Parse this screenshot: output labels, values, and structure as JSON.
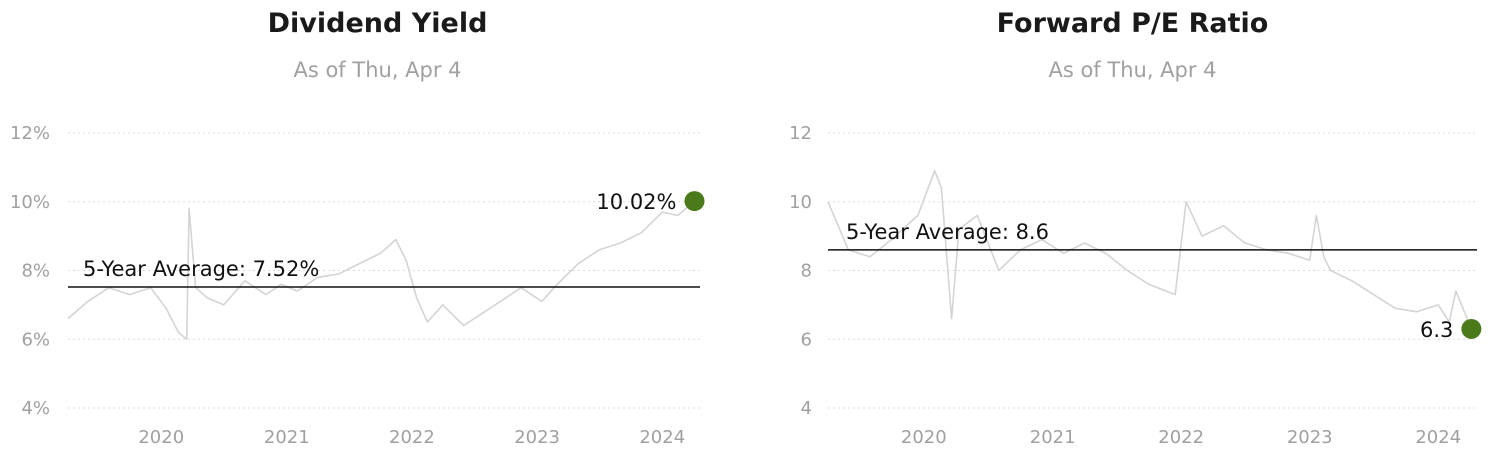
{
  "chart_data": [
    {
      "type": "line",
      "title": "Dividend Yield",
      "subtitle": "As of Thu, Apr 4",
      "x_ticks": [
        "2020",
        "2021",
        "2022",
        "2023",
        "2024"
      ],
      "y_ticks": [
        "4%",
        "6%",
        "8%",
        "10%",
        "12%"
      ],
      "ylim": [
        4,
        12
      ],
      "xlim": [
        "2019-04-04",
        "2024-04-20"
      ],
      "grid": "horizontal dotted",
      "average": {
        "label": "5-Year Average: 7.52%",
        "value": 7.52
      },
      "end_point": {
        "label": "10.02%",
        "x": "2024-04-04",
        "value": 10.02,
        "color": "#4a7a1a"
      },
      "series": [
        {
          "color": "#d4d4d4",
          "x": [
            "2019-04-04",
            "2019-06-01",
            "2019-08-01",
            "2019-10-01",
            "2019-12-01",
            "2020-01-15",
            "2020-02-20",
            "2020-03-15",
            "2020-03-22",
            "2020-04-10",
            "2020-05-15",
            "2020-07-01",
            "2020-09-01",
            "2020-11-01",
            "2020-12-15",
            "2021-02-01",
            "2021-04-01",
            "2021-06-01",
            "2021-08-01",
            "2021-10-01",
            "2021-11-15",
            "2021-12-15",
            "2022-01-15",
            "2022-02-15",
            "2022-04-01",
            "2022-06-01",
            "2022-08-01",
            "2022-10-01",
            "2022-11-15",
            "2023-01-15",
            "2023-03-01",
            "2023-05-01",
            "2023-07-01",
            "2023-09-01",
            "2023-11-01",
            "2024-01-01",
            "2024-02-15",
            "2024-04-04"
          ],
          "values": [
            6.6,
            7.1,
            7.5,
            7.3,
            7.5,
            6.9,
            6.2,
            6.0,
            9.8,
            7.5,
            7.2,
            7.0,
            7.7,
            7.3,
            7.6,
            7.4,
            7.8,
            7.9,
            8.2,
            8.5,
            8.9,
            8.3,
            7.2,
            6.5,
            7.0,
            6.4,
            6.8,
            7.2,
            7.5,
            7.1,
            7.6,
            8.2,
            8.6,
            8.8,
            9.1,
            9.7,
            9.6,
            10.02
          ]
        }
      ]
    },
    {
      "type": "line",
      "title": "Forward P/E Ratio",
      "subtitle": "As of Thu, Apr 4",
      "x_ticks": [
        "2020",
        "2021",
        "2022",
        "2023",
        "2024"
      ],
      "y_ticks": [
        "4",
        "6",
        "8",
        "10",
        "12"
      ],
      "ylim": [
        4,
        12
      ],
      "xlim": [
        "2019-04-04",
        "2024-04-20"
      ],
      "grid": "horizontal dotted",
      "average": {
        "label": "5-Year Average: 8.6",
        "value": 8.6
      },
      "end_point": {
        "label": "6.3",
        "x": "2024-04-04",
        "value": 6.3,
        "color": "#4a7a1a"
      },
      "series": [
        {
          "color": "#d4d4d4",
          "x": [
            "2019-04-04",
            "2019-06-01",
            "2019-08-01",
            "2019-10-01",
            "2019-12-15",
            "2020-02-01",
            "2020-02-20",
            "2020-03-20",
            "2020-04-10",
            "2020-06-01",
            "2020-08-01",
            "2020-10-01",
            "2020-12-01",
            "2021-02-01",
            "2021-04-01",
            "2021-06-01",
            "2021-08-01",
            "2021-10-01",
            "2021-12-15",
            "2022-01-15",
            "2022-03-01",
            "2022-05-01",
            "2022-07-01",
            "2022-09-01",
            "2022-11-01",
            "2023-01-01",
            "2023-01-20",
            "2023-02-10",
            "2023-03-01",
            "2023-05-01",
            "2023-07-01",
            "2023-09-01",
            "2023-11-01",
            "2024-01-01",
            "2024-02-01",
            "2024-02-20",
            "2024-04-04"
          ],
          "values": [
            10.0,
            8.6,
            8.4,
            8.9,
            9.6,
            10.9,
            10.4,
            6.6,
            9.2,
            9.6,
            8.0,
            8.6,
            8.9,
            8.5,
            8.8,
            8.5,
            8.0,
            7.6,
            7.3,
            10.0,
            9.0,
            9.3,
            8.8,
            8.6,
            8.5,
            8.3,
            9.6,
            8.4,
            8.0,
            7.7,
            7.3,
            6.9,
            6.8,
            7.0,
            6.5,
            7.4,
            6.3
          ]
        }
      ]
    }
  ]
}
